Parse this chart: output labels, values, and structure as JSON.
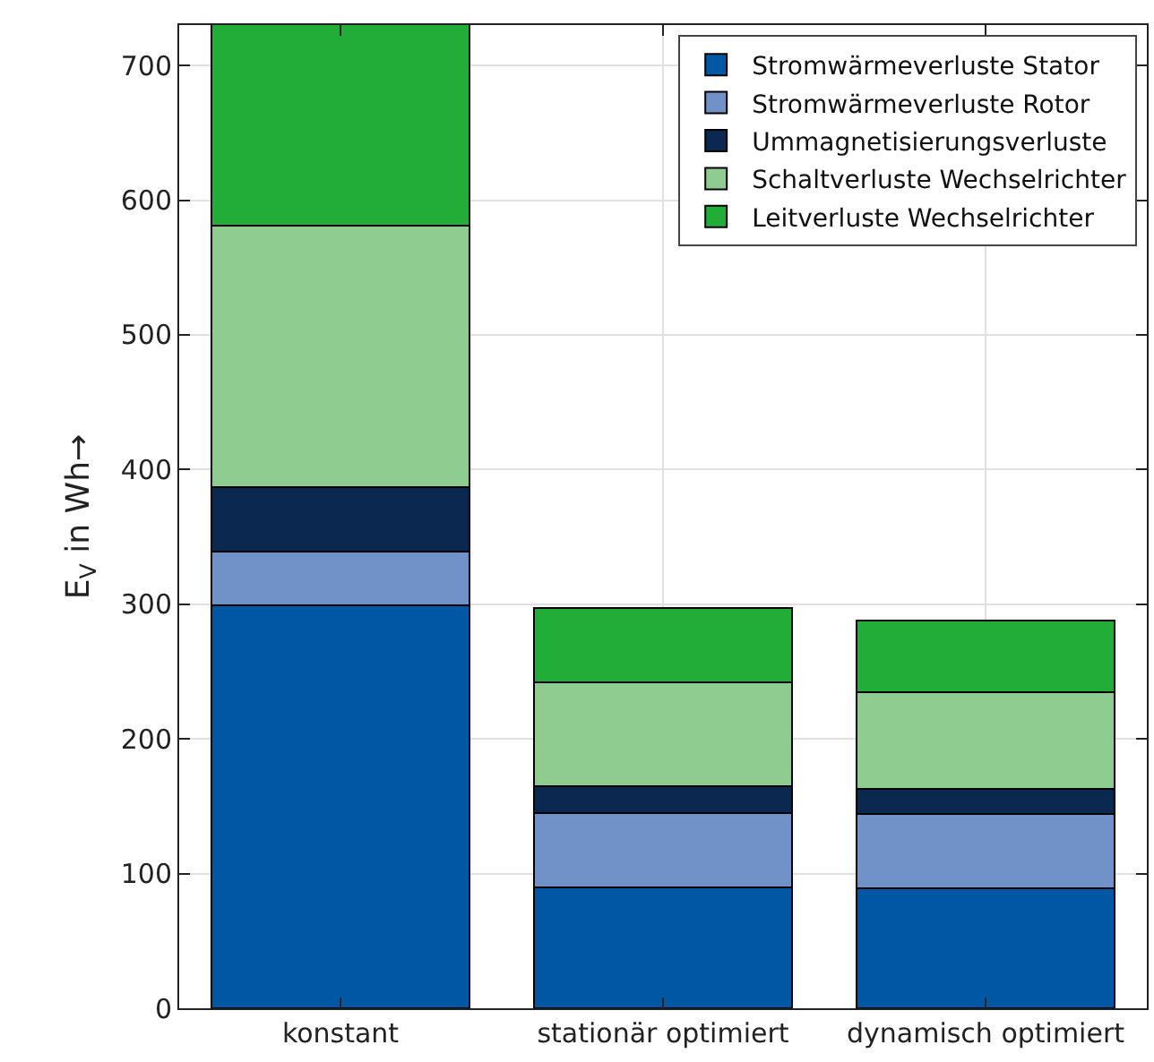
{
  "chart_data": {
    "type": "bar",
    "stacked": true,
    "ylabel": "E$_{V}$ in Wh→",
    "categories": [
      "konstant",
      "stationär optimiert",
      "dynamisch optimiert"
    ],
    "series": [
      {
        "name": "Stromwärmeverluste Stator",
        "color": "#0057a3",
        "values": [
          299,
          90,
          89
        ]
      },
      {
        "name": "Stromwärmeverluste Rotor",
        "color": "#7191c9",
        "values": [
          40,
          55,
          55
        ]
      },
      {
        "name": "Ummagnetisierungsverluste",
        "color": "#0a2850",
        "values": [
          48,
          20,
          19
        ]
      },
      {
        "name": "Schaltverluste Wechselrichter",
        "color": "#8ecc90",
        "values": [
          194,
          77,
          72
        ]
      },
      {
        "name": "Leitverluste Wechselrichter",
        "color": "#22ac38",
        "values": [
          150,
          55,
          53
        ]
      }
    ],
    "ylim": [
      0,
      730
    ],
    "yticks": [
      0,
      100,
      200,
      300,
      400,
      500,
      600,
      700
    ],
    "grid": true,
    "legend": "top right"
  }
}
